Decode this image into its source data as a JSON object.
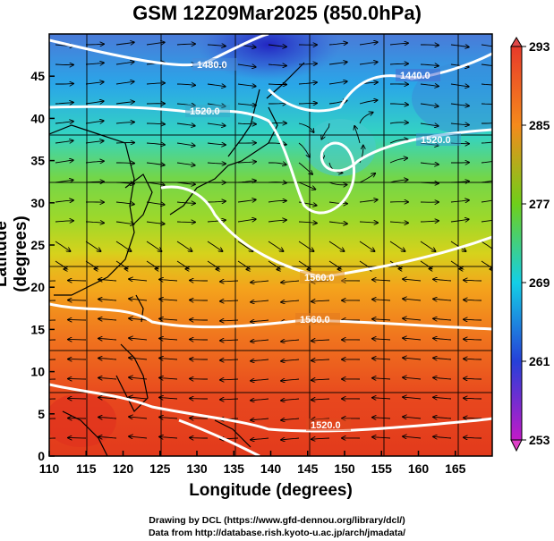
{
  "title": "GSM 12Z09Mar2025 (850.0hPa)",
  "map": {
    "xlabel": "Longitude (degrees)",
    "ylabel": "Latitude  (degrees)",
    "lon_range": [
      110,
      170
    ],
    "lat_range": [
      0,
      50
    ],
    "lon_ticks": [
      "110",
      "115",
      "120",
      "125",
      "130",
      "135",
      "140",
      "145",
      "150",
      "155",
      "160",
      "165"
    ],
    "lat_ticks": [
      "0",
      "5",
      "10",
      "15",
      "20",
      "25",
      "30",
      "35",
      "40",
      "45"
    ],
    "grid": true
  },
  "colorbar": {
    "min": 253,
    "max": 293,
    "labels": [
      "293",
      "285",
      "277",
      "269",
      "261",
      "253"
    ],
    "colors": [
      "#e83a2a",
      "#f58a1c",
      "#6fcf1a",
      "#14cfe6",
      "#2640d8",
      "#c21ac8"
    ]
  },
  "contours": [
    {
      "text": "1440.0"
    },
    {
      "text": "1480.0"
    },
    {
      "text": "1520.0"
    },
    {
      "text": "1520.0"
    },
    {
      "text": "1560.0"
    },
    {
      "text": "1560.0"
    },
    {
      "text": "1520.0"
    }
  ],
  "credits": {
    "line1": "Drawing by DCL (https://www.gfd-dennou.org/library/dcl/)",
    "line2": "Data from http://database.rish.kyoto-u.ac.jp/arch/jmadata/"
  }
}
